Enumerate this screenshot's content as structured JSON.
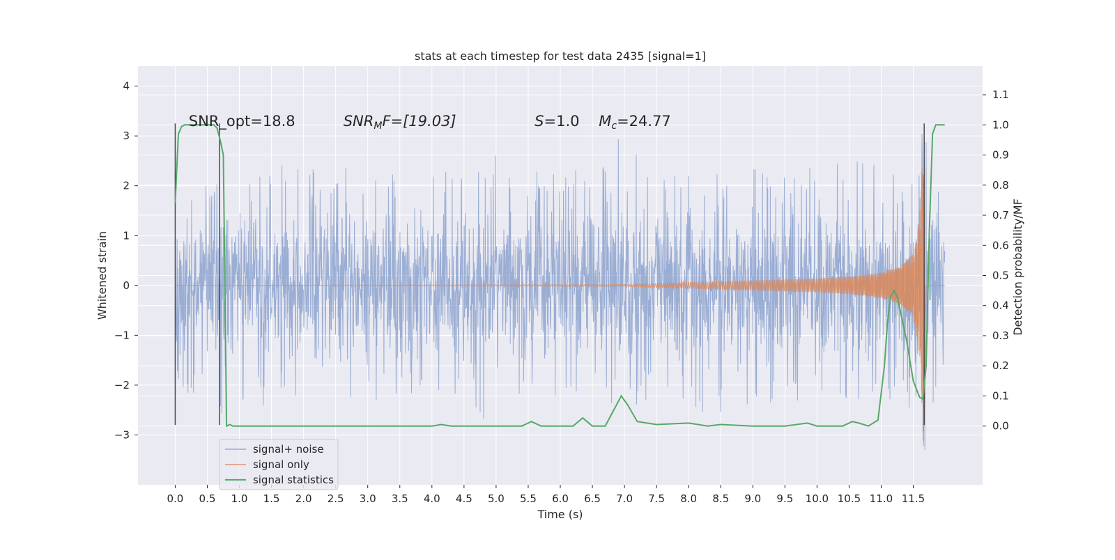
{
  "chart_data": {
    "type": "line",
    "title": "stats at each timestep for test data 2435 [signal=1]",
    "xlabel": "Time (s)",
    "ylabel": "Whitened strain",
    "y2label": "Detection probability/MF",
    "xlim": [
      -0.58,
      12.58
    ],
    "ylim": [
      -4.0,
      4.4
    ],
    "y2lim": [
      -0.195,
      1.195
    ],
    "grid": true,
    "legend_position": "bottom-left",
    "x_ticks": [
      "0.0",
      "0.5",
      "1.0",
      "1.5",
      "2.0",
      "2.5",
      "3.0",
      "3.5",
      "4.0",
      "4.5",
      "5.0",
      "5.5",
      "6.0",
      "6.5",
      "7.0",
      "7.5",
      "8.0",
      "8.5",
      "9.0",
      "9.5",
      "10.0",
      "10.5",
      "11.0",
      "11.5"
    ],
    "y_ticks": [
      "4",
      "3",
      "2",
      "1",
      "0",
      "−1",
      "−2",
      "−3"
    ],
    "y2_ticks": [
      "1.1",
      "1.0",
      "0.9",
      "0.8",
      "0.7",
      "0.6",
      "0.5",
      "0.4",
      "0.3",
      "0.2",
      "0.1",
      "0.0"
    ],
    "annotations": {
      "snr_opt": "SNR_opt=18.8",
      "snr_mf_sym": "SNR",
      "snr_mf_sub": "M",
      "snr_mf_rest": "F=[19.03]",
      "s_sym": "S",
      "s_rest": "=1.0",
      "mc_sym": "M",
      "mc_sub": "c",
      "mc_rest": "=24.77"
    },
    "vertical_markers": [
      {
        "x": 0.0,
        "ymin": -2.8,
        "ymax": 3.25
      },
      {
        "x": 0.69,
        "ymin": -2.8,
        "ymax": 3.25
      },
      {
        "x": 11.67,
        "ymin": -2.8,
        "ymax": 3.25
      }
    ],
    "series": [
      {
        "name": "signal+ noise",
        "color": "#7f98c8",
        "envelope": {
          "x": [
            0.0,
            0.5,
            1.0,
            1.5,
            2.0,
            2.5,
            3.0,
            3.5,
            4.0,
            4.5,
            5.0,
            5.5,
            6.0,
            6.5,
            7.0,
            7.5,
            8.0,
            8.5,
            9.0,
            9.5,
            10.0,
            10.5,
            11.0,
            11.3,
            11.5,
            11.6,
            11.65,
            11.7,
            11.8,
            11.99
          ],
          "upper": [
            1.9,
            2.0,
            2.1,
            2.4,
            2.6,
            2.3,
            2.5,
            2.3,
            2.4,
            2.2,
            2.7,
            2.2,
            2.5,
            2.3,
            3.2,
            2.2,
            2.5,
            2.4,
            2.4,
            2.2,
            2.4,
            2.6,
            2.5,
            2.5,
            2.6,
            3.3,
            4.1,
            3.2,
            2.4,
            1.8
          ],
          "lower": [
            -2.0,
            -2.4,
            -2.8,
            -2.3,
            -2.4,
            -2.2,
            -2.4,
            -2.3,
            -2.2,
            -2.4,
            -3.0,
            -2.2,
            -2.4,
            -2.3,
            -2.5,
            -2.3,
            -2.5,
            -2.6,
            -2.5,
            -2.3,
            -2.4,
            -2.3,
            -2.4,
            -2.5,
            -2.6,
            -2.9,
            -3.6,
            -3.1,
            -2.4,
            -1.5
          ]
        }
      },
      {
        "name": "signal only",
        "color": "#dd8452",
        "amplitude": {
          "x": [
            0.0,
            7.0,
            8.0,
            9.0,
            10.0,
            10.5,
            11.0,
            11.3,
            11.5,
            11.6,
            11.65,
            11.68,
            11.7,
            11.99
          ],
          "a": [
            0.0,
            0.02,
            0.06,
            0.1,
            0.14,
            0.18,
            0.26,
            0.38,
            0.65,
            1.4,
            3.2,
            2.5,
            0.0,
            0.0
          ]
        }
      },
      {
        "name": "signal statistics",
        "color": "#55a868",
        "axis": "right",
        "x": [
          0.0,
          0.05,
          0.1,
          0.15,
          0.2,
          0.3,
          0.4,
          0.5,
          0.6,
          0.65,
          0.7,
          0.75,
          0.8,
          0.85,
          0.9,
          1.0,
          1.5,
          2.0,
          3.0,
          4.0,
          4.15,
          4.3,
          5.0,
          5.4,
          5.55,
          5.7,
          6.0,
          6.2,
          6.35,
          6.5,
          6.7,
          6.8,
          6.9,
          6.95,
          7.05,
          7.2,
          7.5,
          8.0,
          8.3,
          8.5,
          9.0,
          9.5,
          9.85,
          10.0,
          10.4,
          10.55,
          10.65,
          10.8,
          10.95,
          11.05,
          11.1,
          11.15,
          11.2,
          11.25,
          11.3,
          11.4,
          11.5,
          11.6,
          11.65,
          11.7,
          11.75,
          11.8,
          11.85,
          11.9,
          11.99
        ],
        "y": [
          0.74,
          0.97,
          0.995,
          1.0,
          1.0,
          1.0,
          1.0,
          1.0,
          1.0,
          0.99,
          0.95,
          0.9,
          0.0,
          0.005,
          0.0,
          0.0,
          0.0,
          0.0,
          0.0,
          0.0,
          0.005,
          0.0,
          0.0,
          0.0,
          0.015,
          0.0,
          0.0,
          0.0,
          0.027,
          0.0,
          0.0,
          0.04,
          0.08,
          0.1,
          0.07,
          0.015,
          0.005,
          0.01,
          0.0,
          0.005,
          0.0,
          0.0,
          0.01,
          0.0,
          0.0,
          0.015,
          0.01,
          0.0,
          0.02,
          0.2,
          0.35,
          0.43,
          0.45,
          0.43,
          0.38,
          0.28,
          0.15,
          0.095,
          0.09,
          0.2,
          0.65,
          0.97,
          1.0,
          1.0,
          1.0
        ]
      }
    ]
  }
}
